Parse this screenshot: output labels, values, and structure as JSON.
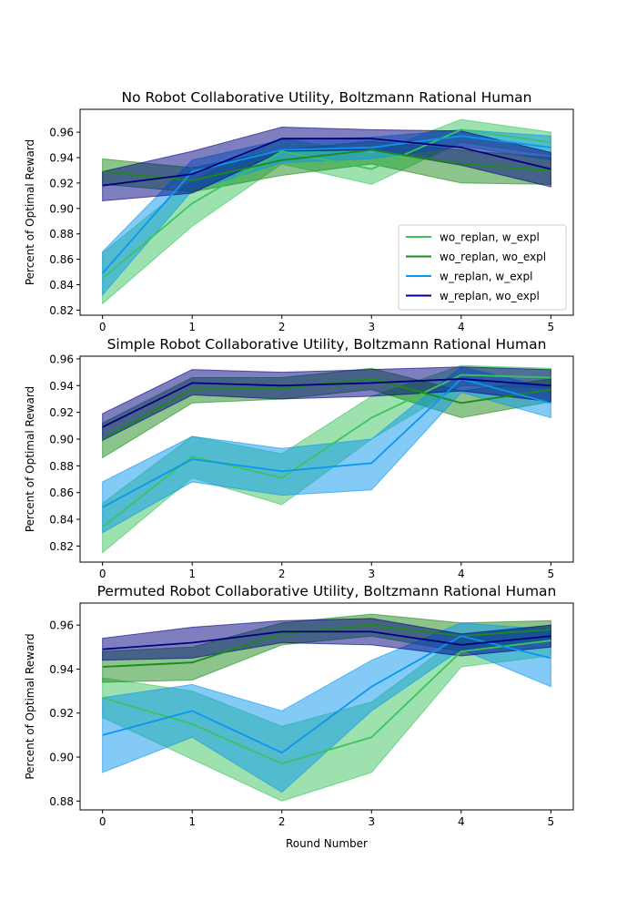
{
  "figure": {
    "shared_xlabel": "Round Number"
  },
  "chart_data": [
    {
      "type": "line",
      "title": "No Robot Collaborative Utility, Boltzmann Rational Human",
      "xlabel": "",
      "ylabel": "Percent of Optimal Reward",
      "x": [
        0,
        1,
        2,
        3,
        4,
        5
      ],
      "xlim": [
        -0.25,
        5.25
      ],
      "ylim": [
        0.816,
        0.978
      ],
      "yticks": [
        0.82,
        0.84,
        0.86,
        0.88,
        0.9,
        0.92,
        0.94,
        0.96
      ],
      "ytick_labels": [
        "0.82",
        "0.84",
        "0.86",
        "0.88",
        "0.90",
        "0.92",
        "0.94",
        "0.96"
      ],
      "xtick_labels": [
        "0",
        "1",
        "2",
        "3",
        "4",
        "5"
      ],
      "grid": false,
      "legend": "lower-right",
      "series": [
        {
          "name": "wo_replan, w_expl",
          "color": "#3cc35f",
          "values": [
            0.845,
            0.904,
            0.945,
            0.931,
            0.962,
            0.952
          ],
          "lower": [
            0.825,
            0.886,
            0.935,
            0.919,
            0.952,
            0.942
          ],
          "upper": [
            0.865,
            0.922,
            0.955,
            0.943,
            0.97,
            0.96
          ]
        },
        {
          "name": "wo_replan, wo_expl",
          "color": "#1a8a1a",
          "values": [
            0.929,
            0.922,
            0.938,
            0.946,
            0.935,
            0.93
          ],
          "lower": [
            0.919,
            0.913,
            0.926,
            0.935,
            0.92,
            0.919
          ],
          "upper": [
            0.939,
            0.932,
            0.946,
            0.953,
            0.946,
            0.94
          ]
        },
        {
          "name": "w_replan, w_expl",
          "color": "#0a96f0",
          "values": [
            0.849,
            0.929,
            0.946,
            0.948,
            0.957,
            0.948
          ],
          "lower": [
            0.832,
            0.914,
            0.936,
            0.939,
            0.949,
            0.938
          ],
          "upper": [
            0.866,
            0.938,
            0.954,
            0.956,
            0.962,
            0.957
          ]
        },
        {
          "name": "w_replan, wo_expl",
          "color": "#000080",
          "values": [
            0.918,
            0.927,
            0.955,
            0.955,
            0.948,
            0.931
          ],
          "lower": [
            0.906,
            0.912,
            0.945,
            0.946,
            0.934,
            0.917
          ],
          "upper": [
            0.929,
            0.945,
            0.964,
            0.962,
            0.961,
            0.944
          ]
        }
      ]
    },
    {
      "type": "line",
      "title": "Simple Robot Collaborative Utility, Boltzmann Rational Human",
      "xlabel": "",
      "ylabel": "Percent of Optimal Reward",
      "x": [
        0,
        1,
        2,
        3,
        4,
        5
      ],
      "xlim": [
        -0.25,
        5.25
      ],
      "ylim": [
        0.808,
        0.962
      ],
      "yticks": [
        0.82,
        0.84,
        0.86,
        0.88,
        0.9,
        0.92,
        0.94,
        0.96
      ],
      "ytick_labels": [
        "0.82",
        "0.84",
        "0.86",
        "0.88",
        "0.90",
        "0.92",
        "0.94",
        "0.96"
      ],
      "xtick_labels": [
        "0",
        "1",
        "2",
        "3",
        "4",
        "5"
      ],
      "grid": false,
      "legend": "none",
      "series": [
        {
          "name": "wo_replan, w_expl",
          "color": "#3cc35f",
          "values": [
            0.834,
            0.887,
            0.871,
            0.916,
            0.948,
            0.946
          ],
          "lower": [
            0.815,
            0.871,
            0.851,
            0.9,
            0.94,
            0.938
          ],
          "upper": [
            0.852,
            0.902,
            0.889,
            0.932,
            0.955,
            0.953
          ]
        },
        {
          "name": "wo_replan, wo_expl",
          "color": "#1a8a1a",
          "values": [
            0.9,
            0.937,
            0.938,
            0.945,
            0.927,
            0.937
          ],
          "lower": [
            0.886,
            0.927,
            0.93,
            0.937,
            0.916,
            0.928
          ],
          "upper": [
            0.912,
            0.946,
            0.946,
            0.953,
            0.936,
            0.945
          ]
        },
        {
          "name": "w_replan, w_expl",
          "color": "#0a96f0",
          "values": [
            0.849,
            0.885,
            0.876,
            0.882,
            0.945,
            0.927
          ],
          "lower": [
            0.83,
            0.868,
            0.858,
            0.862,
            0.935,
            0.916
          ],
          "upper": [
            0.868,
            0.902,
            0.893,
            0.9,
            0.954,
            0.938
          ]
        },
        {
          "name": "w_replan, wo_expl",
          "color": "#000080",
          "values": [
            0.909,
            0.942,
            0.94,
            0.942,
            0.945,
            0.94
          ],
          "lower": [
            0.899,
            0.933,
            0.93,
            0.932,
            0.936,
            0.928
          ],
          "upper": [
            0.919,
            0.952,
            0.95,
            0.952,
            0.954,
            0.952
          ]
        }
      ]
    },
    {
      "type": "line",
      "title": "Permuted Robot Collaborative Utility, Boltzmann Rational Human",
      "xlabel": "Round Number",
      "ylabel": "Percent of Optimal Reward",
      "x": [
        0,
        1,
        2,
        3,
        4,
        5
      ],
      "xlim": [
        -0.25,
        5.25
      ],
      "ylim": [
        0.876,
        0.97
      ],
      "yticks": [
        0.88,
        0.9,
        0.92,
        0.94,
        0.96
      ],
      "ytick_labels": [
        "0.88",
        "0.90",
        "0.92",
        "0.94",
        "0.96"
      ],
      "xtick_labels": [
        "0",
        "1",
        "2",
        "3",
        "4",
        "5"
      ],
      "grid": false,
      "legend": "none",
      "series": [
        {
          "name": "wo_replan, w_expl",
          "color": "#3cc35f",
          "values": [
            0.927,
            0.915,
            0.897,
            0.909,
            0.948,
            0.953
          ],
          "lower": [
            0.918,
            0.899,
            0.88,
            0.893,
            0.941,
            0.946
          ],
          "upper": [
            0.936,
            0.93,
            0.914,
            0.925,
            0.955,
            0.96
          ]
        },
        {
          "name": "wo_replan, wo_expl",
          "color": "#1a8a1a",
          "values": [
            0.941,
            0.943,
            0.956,
            0.96,
            0.955,
            0.958
          ],
          "lower": [
            0.934,
            0.935,
            0.951,
            0.955,
            0.948,
            0.953
          ],
          "upper": [
            0.948,
            0.95,
            0.961,
            0.965,
            0.961,
            0.962
          ]
        },
        {
          "name": "w_replan, w_expl",
          "color": "#0a96f0",
          "values": [
            0.91,
            0.921,
            0.902,
            0.932,
            0.955,
            0.945
          ],
          "lower": [
            0.893,
            0.909,
            0.884,
            0.921,
            0.949,
            0.932
          ],
          "upper": [
            0.927,
            0.933,
            0.921,
            0.944,
            0.961,
            0.958
          ]
        },
        {
          "name": "w_replan, wo_expl",
          "color": "#000080",
          "values": [
            0.949,
            0.952,
            0.957,
            0.957,
            0.951,
            0.955
          ],
          "lower": [
            0.944,
            0.945,
            0.952,
            0.951,
            0.946,
            0.95
          ],
          "upper": [
            0.954,
            0.959,
            0.962,
            0.963,
            0.956,
            0.96
          ]
        }
      ]
    }
  ]
}
